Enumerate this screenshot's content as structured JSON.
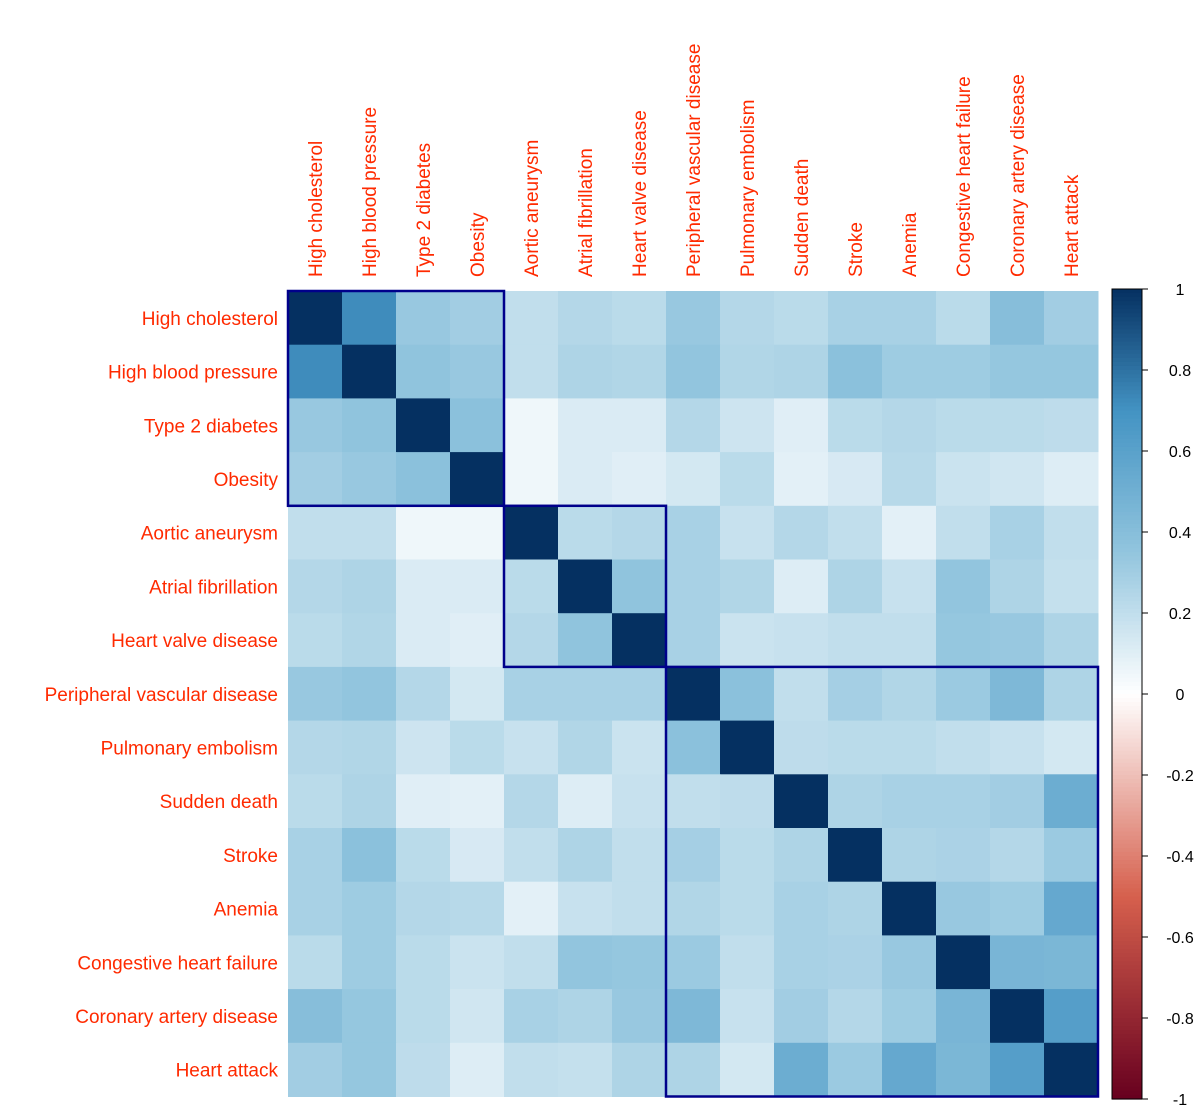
{
  "chart_data": {
    "type": "heatmap",
    "title": "",
    "labels": [
      "High cholesterol",
      "High blood pressure",
      "Type 2 diabetes",
      "Obesity",
      "Aortic aneurysm",
      "Atrial fibrillation",
      "Heart valve disease",
      "Peripheral vascular disease",
      "Pulmonary embolism",
      "Sudden death",
      "Stroke",
      "Anemia",
      "Congestive heart failure",
      "Coronary artery disease",
      "Heart attack"
    ],
    "matrix": [
      [
        1.0,
        0.72,
        0.33,
        0.3,
        0.2,
        0.24,
        0.22,
        0.33,
        0.24,
        0.22,
        0.28,
        0.28,
        0.22,
        0.4,
        0.3
      ],
      [
        0.72,
        1.0,
        0.36,
        0.33,
        0.2,
        0.26,
        0.25,
        0.35,
        0.25,
        0.26,
        0.38,
        0.31,
        0.31,
        0.34,
        0.34
      ],
      [
        0.33,
        0.36,
        1.0,
        0.38,
        0.05,
        0.12,
        0.12,
        0.24,
        0.16,
        0.1,
        0.22,
        0.24,
        0.22,
        0.22,
        0.21
      ],
      [
        0.3,
        0.33,
        0.38,
        1.0,
        0.05,
        0.12,
        0.1,
        0.14,
        0.22,
        0.09,
        0.13,
        0.23,
        0.17,
        0.15,
        0.11
      ],
      [
        0.2,
        0.2,
        0.05,
        0.05,
        1.0,
        0.22,
        0.24,
        0.28,
        0.18,
        0.24,
        0.2,
        0.09,
        0.2,
        0.28,
        0.2
      ],
      [
        0.24,
        0.26,
        0.12,
        0.12,
        0.22,
        1.0,
        0.36,
        0.28,
        0.25,
        0.11,
        0.26,
        0.18,
        0.35,
        0.26,
        0.19
      ],
      [
        0.22,
        0.25,
        0.12,
        0.1,
        0.24,
        0.36,
        1.0,
        0.28,
        0.17,
        0.18,
        0.2,
        0.2,
        0.34,
        0.33,
        0.26
      ],
      [
        0.33,
        0.35,
        0.24,
        0.14,
        0.28,
        0.28,
        0.28,
        1.0,
        0.38,
        0.2,
        0.29,
        0.25,
        0.32,
        0.44,
        0.26
      ],
      [
        0.24,
        0.25,
        0.16,
        0.22,
        0.18,
        0.25,
        0.17,
        0.38,
        1.0,
        0.21,
        0.22,
        0.22,
        0.2,
        0.18,
        0.14
      ],
      [
        0.22,
        0.26,
        0.1,
        0.09,
        0.24,
        0.11,
        0.18,
        0.2,
        0.21,
        1.0,
        0.26,
        0.28,
        0.28,
        0.3,
        0.52
      ],
      [
        0.28,
        0.38,
        0.22,
        0.13,
        0.2,
        0.26,
        0.2,
        0.29,
        0.22,
        0.26,
        1.0,
        0.26,
        0.27,
        0.24,
        0.32
      ],
      [
        0.28,
        0.31,
        0.24,
        0.23,
        0.09,
        0.18,
        0.2,
        0.25,
        0.22,
        0.28,
        0.26,
        1.0,
        0.33,
        0.31,
        0.55
      ],
      [
        0.22,
        0.31,
        0.22,
        0.17,
        0.2,
        0.35,
        0.34,
        0.32,
        0.2,
        0.28,
        0.27,
        0.33,
        1.0,
        0.46,
        0.45
      ],
      [
        0.4,
        0.34,
        0.22,
        0.15,
        0.28,
        0.26,
        0.33,
        0.44,
        0.18,
        0.3,
        0.24,
        0.31,
        0.46,
        1.0,
        0.62
      ],
      [
        0.3,
        0.34,
        0.21,
        0.11,
        0.2,
        0.19,
        0.26,
        0.26,
        0.14,
        0.52,
        0.32,
        0.55,
        0.45,
        0.62,
        1.0
      ]
    ],
    "clusters": [
      {
        "start": 0,
        "end": 3
      },
      {
        "start": 4,
        "end": 6
      },
      {
        "start": 7,
        "end": 14
      }
    ],
    "colorbar": {
      "range": [
        -1,
        1
      ],
      "ticks": [
        "1",
        "0.8",
        "0.6",
        "0.4",
        "0.2",
        "0",
        "-0.2",
        "-0.4",
        "-0.6",
        "-0.8",
        "-1"
      ]
    },
    "colors": {
      "label": "#ff2a00",
      "cluster_border": "#00008b",
      "scale_neg_strong": "#67001f",
      "scale_neg_mid": "#d6604d",
      "scale_zero": "#ffffff",
      "scale_pos_mid": "#4393c3",
      "scale_pos_strong": "#053061"
    }
  }
}
